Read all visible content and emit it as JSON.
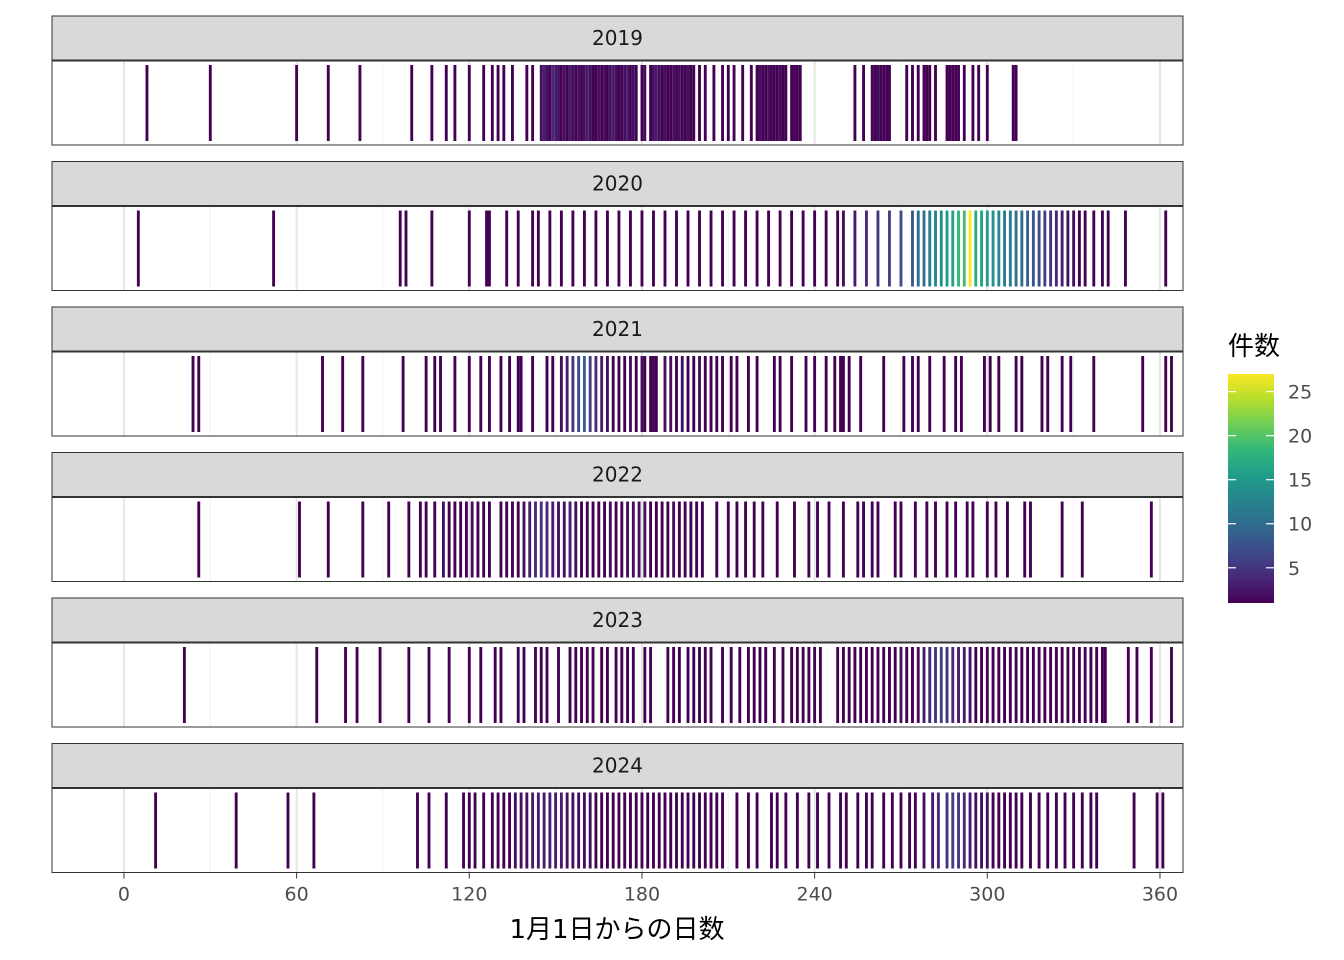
{
  "chart_data": {
    "type": "heatmap",
    "title": "",
    "xlabel": "1月1日からの日数",
    "ylabel": "",
    "xlim": [
      -25,
      368
    ],
    "x_ticks": [
      0,
      60,
      120,
      180,
      240,
      300,
      360
    ],
    "legend": {
      "title": "件数",
      "position": "right",
      "range": [
        1,
        27
      ],
      "ticks": [
        5,
        10,
        15,
        20,
        25
      ],
      "colors": [
        "#440154",
        "#482878",
        "#3e4989",
        "#31688e",
        "#26828e",
        "#1f9e89",
        "#35b779",
        "#6ece58",
        "#b5de2b",
        "#fde725"
      ]
    },
    "grid": true,
    "facets": [
      {
        "label": "2019",
        "days": [
          8,
          30,
          60,
          71,
          82,
          100,
          107,
          112,
          115,
          120,
          125,
          128,
          130,
          132,
          135,
          140,
          142,
          145,
          146,
          147,
          148,
          149,
          150,
          151,
          152,
          153,
          154,
          155,
          156,
          157,
          158,
          159,
          160,
          161,
          162,
          163,
          164,
          165,
          166,
          167,
          168,
          169,
          170,
          171,
          172,
          173,
          174,
          175,
          176,
          177,
          178,
          180,
          181,
          183,
          184,
          185,
          186,
          187,
          188,
          189,
          190,
          191,
          192,
          193,
          194,
          195,
          196,
          197,
          198,
          200,
          202,
          205,
          208,
          210,
          212,
          215,
          218,
          220,
          221,
          222,
          223,
          224,
          225,
          226,
          227,
          228,
          229,
          230,
          232,
          233,
          234,
          235,
          254,
          257,
          260,
          261,
          262,
          263,
          264,
          265,
          266,
          272,
          274,
          276,
          278,
          279,
          280,
          282,
          286,
          287,
          288,
          289,
          290,
          292,
          295,
          297,
          300,
          309,
          310
        ],
        "counts": [
          1,
          1,
          1,
          1,
          1,
          1,
          1,
          1,
          1,
          1,
          1,
          1,
          1,
          1,
          1,
          1,
          1,
          2,
          3,
          2,
          1,
          4,
          3,
          2,
          1,
          2,
          1,
          3,
          2,
          1,
          2,
          1,
          2,
          3,
          2,
          1,
          1,
          2,
          1,
          2,
          1,
          2,
          3,
          2,
          1,
          1,
          2,
          3,
          1,
          2,
          1,
          1,
          2,
          1,
          2,
          3,
          2,
          1,
          2,
          1,
          1,
          2,
          1,
          2,
          1,
          1,
          2,
          1,
          1,
          1,
          1,
          1,
          1,
          1,
          1,
          1,
          1,
          1,
          2,
          1,
          1,
          2,
          1,
          1,
          1,
          2,
          1,
          1,
          1,
          1,
          1,
          1,
          1,
          1,
          1,
          1,
          2,
          1,
          1,
          1,
          1,
          1,
          1,
          1,
          1,
          1,
          1,
          1,
          1,
          1,
          1,
          1,
          1,
          1,
          1,
          1,
          1,
          1,
          1
        ]
      },
      {
        "label": "2020",
        "days": [
          5,
          52,
          96,
          98,
          107,
          120,
          126,
          127,
          133,
          137,
          142,
          144,
          148,
          152,
          156,
          160,
          164,
          168,
          172,
          176,
          180,
          184,
          188,
          192,
          196,
          200,
          204,
          208,
          212,
          216,
          220,
          224,
          228,
          232,
          236,
          240,
          244,
          248,
          250,
          254,
          258,
          262,
          266,
          270,
          274,
          276,
          278,
          280,
          282,
          284,
          286,
          288,
          290,
          292,
          294,
          296,
          298,
          300,
          302,
          304,
          306,
          308,
          310,
          312,
          314,
          316,
          318,
          320,
          322,
          324,
          326,
          328,
          330,
          332,
          334,
          337,
          340,
          342,
          348,
          362
        ],
        "counts": [
          1,
          1,
          1,
          1,
          1,
          1,
          1,
          1,
          1,
          1,
          1,
          1,
          1,
          1,
          1,
          1,
          1,
          1,
          1,
          1,
          1,
          1,
          1,
          1,
          1,
          1,
          1,
          1,
          1,
          1,
          1,
          1,
          1,
          1,
          1,
          1,
          1,
          1,
          2,
          3,
          4,
          5,
          6,
          7,
          8,
          10,
          11,
          12,
          13,
          14,
          15,
          16,
          18,
          19,
          27,
          17,
          16,
          15,
          14,
          13,
          12,
          12,
          11,
          10,
          9,
          8,
          7,
          6,
          5,
          4,
          3,
          2,
          2,
          1,
          1,
          1,
          1,
          1,
          1,
          1
        ]
      },
      {
        "label": "2021",
        "days": [
          24,
          26,
          69,
          76,
          83,
          97,
          105,
          108,
          110,
          115,
          120,
          124,
          127,
          131,
          134,
          137,
          138,
          142,
          147,
          149,
          152,
          154,
          156,
          158,
          160,
          162,
          164,
          166,
          168,
          170,
          172,
          174,
          176,
          178,
          180,
          181,
          183,
          184,
          185,
          188,
          190,
          192,
          194,
          196,
          198,
          200,
          202,
          204,
          206,
          208,
          211,
          213,
          217,
          220,
          226,
          228,
          232,
          237,
          240,
          244,
          247,
          249,
          250,
          252,
          256,
          264,
          271,
          274,
          276,
          280,
          285,
          289,
          291,
          299,
          301,
          304,
          310,
          312,
          319,
          321,
          326,
          329,
          337,
          354,
          362,
          364
        ],
        "counts": [
          1,
          1,
          1,
          1,
          1,
          1,
          1,
          1,
          1,
          1,
          1,
          1,
          1,
          1,
          1,
          1,
          1,
          1,
          1,
          1,
          2,
          3,
          5,
          7,
          9,
          6,
          4,
          3,
          2,
          1,
          1,
          1,
          2,
          1,
          2,
          1,
          1,
          1,
          1,
          2,
          2,
          1,
          2,
          1,
          1,
          2,
          1,
          1,
          1,
          1,
          1,
          1,
          1,
          1,
          1,
          1,
          1,
          1,
          1,
          1,
          1,
          1,
          1,
          1,
          1,
          1,
          1,
          1,
          1,
          1,
          1,
          1,
          1,
          1,
          1,
          1,
          1,
          1,
          1,
          1,
          1,
          1,
          1,
          1,
          1,
          1
        ]
      },
      {
        "label": "2022",
        "days": [
          26,
          61,
          71,
          83,
          92,
          99,
          103,
          105,
          108,
          111,
          113,
          115,
          117,
          119,
          121,
          123,
          125,
          127,
          131,
          133,
          135,
          137,
          139,
          141,
          143,
          145,
          147,
          149,
          151,
          153,
          155,
          157,
          159,
          161,
          163,
          165,
          167,
          169,
          171,
          173,
          175,
          177,
          179,
          181,
          183,
          185,
          187,
          189,
          191,
          193,
          195,
          197,
          199,
          201,
          206,
          210,
          213,
          216,
          219,
          222,
          227,
          233,
          238,
          241,
          245,
          250,
          255,
          257,
          260,
          262,
          268,
          270,
          275,
          279,
          282,
          286,
          289,
          293,
          295,
          300,
          303,
          307,
          313,
          315,
          326,
          333,
          357
        ],
        "counts": [
          1,
          1,
          1,
          1,
          1,
          1,
          1,
          1,
          1,
          2,
          1,
          1,
          1,
          1,
          2,
          1,
          1,
          1,
          1,
          1,
          1,
          1,
          2,
          3,
          4,
          5,
          4,
          3,
          2,
          2,
          3,
          2,
          1,
          1,
          1,
          1,
          1,
          2,
          1,
          1,
          2,
          2,
          2,
          2,
          1,
          1,
          1,
          1,
          2,
          1,
          1,
          1,
          1,
          1,
          1,
          1,
          1,
          1,
          1,
          1,
          1,
          1,
          1,
          1,
          1,
          1,
          1,
          1,
          1,
          1,
          1,
          1,
          1,
          1,
          1,
          1,
          1,
          1,
          1,
          1,
          1,
          1,
          1,
          1,
          1,
          1,
          1
        ]
      },
      {
        "label": "2023",
        "days": [
          21,
          67,
          77,
          81,
          89,
          99,
          106,
          113,
          120,
          124,
          129,
          131,
          137,
          139,
          143,
          145,
          147,
          151,
          155,
          157,
          159,
          161,
          163,
          166,
          168,
          171,
          173,
          175,
          177,
          181,
          183,
          189,
          191,
          193,
          196,
          198,
          200,
          202,
          204,
          208,
          211,
          214,
          217,
          219,
          221,
          223,
          226,
          229,
          232,
          234,
          236,
          238,
          240,
          242,
          248,
          250,
          252,
          254,
          256,
          258,
          260,
          262,
          264,
          266,
          268,
          270,
          272,
          274,
          276,
          278,
          280,
          282,
          284,
          286,
          288,
          290,
          292,
          294,
          296,
          298,
          300,
          302,
          304,
          306,
          308,
          310,
          312,
          314,
          316,
          318,
          320,
          322,
          324,
          326,
          328,
          330,
          332,
          334,
          336,
          338,
          340,
          341,
          349,
          352,
          357,
          364
        ],
        "counts": [
          1,
          1,
          1,
          1,
          1,
          1,
          1,
          1,
          1,
          1,
          1,
          1,
          1,
          1,
          1,
          1,
          1,
          1,
          1,
          1,
          1,
          1,
          1,
          1,
          1,
          1,
          1,
          1,
          1,
          1,
          1,
          1,
          1,
          1,
          1,
          1,
          1,
          1,
          1,
          1,
          1,
          1,
          1,
          1,
          1,
          1,
          1,
          1,
          1,
          1,
          1,
          1,
          1,
          1,
          1,
          1,
          1,
          1,
          1,
          1,
          1,
          1,
          1,
          1,
          1,
          2,
          1,
          1,
          2,
          3,
          4,
          5,
          6,
          5,
          4,
          3,
          3,
          2,
          1,
          1,
          1,
          1,
          1,
          1,
          1,
          1,
          1,
          1,
          1,
          1,
          1,
          1,
          1,
          1,
          1,
          1,
          1,
          1,
          1,
          1,
          1,
          1,
          1,
          1,
          1,
          1
        ]
      },
      {
        "label": "2024",
        "days": [
          11,
          39,
          57,
          66,
          102,
          106,
          112,
          118,
          120,
          122,
          125,
          128,
          130,
          132,
          134,
          136,
          138,
          140,
          142,
          144,
          146,
          148,
          150,
          152,
          154,
          156,
          158,
          160,
          162,
          164,
          166,
          168,
          170,
          172,
          174,
          176,
          178,
          180,
          182,
          184,
          186,
          188,
          190,
          192,
          194,
          196,
          198,
          200,
          202,
          204,
          206,
          208,
          213,
          217,
          220,
          225,
          227,
          230,
          234,
          238,
          241,
          245,
          249,
          251,
          255,
          258,
          260,
          264,
          267,
          270,
          273,
          275,
          278,
          281,
          283,
          286,
          288,
          290,
          292,
          294,
          296,
          298,
          300,
          302,
          304,
          306,
          308,
          310,
          312,
          315,
          318,
          321,
          324,
          327,
          330,
          333,
          336,
          338,
          351,
          359,
          361
        ],
        "counts": [
          1,
          1,
          1,
          1,
          1,
          1,
          1,
          1,
          1,
          1,
          1,
          1,
          1,
          1,
          1,
          2,
          2,
          2,
          3,
          3,
          3,
          3,
          3,
          3,
          2,
          2,
          2,
          2,
          2,
          1,
          1,
          1,
          1,
          1,
          1,
          1,
          1,
          1,
          1,
          1,
          1,
          1,
          1,
          1,
          1,
          1,
          1,
          1,
          1,
          1,
          1,
          1,
          1,
          1,
          1,
          1,
          1,
          1,
          1,
          1,
          1,
          1,
          1,
          1,
          1,
          1,
          1,
          1,
          1,
          1,
          1,
          1,
          2,
          3,
          4,
          5,
          6,
          5,
          4,
          3,
          2,
          2,
          2,
          1,
          1,
          1,
          1,
          1,
          1,
          1,
          1,
          1,
          1,
          1,
          1,
          1,
          1,
          1,
          1,
          1,
          1
        ]
      }
    ]
  }
}
